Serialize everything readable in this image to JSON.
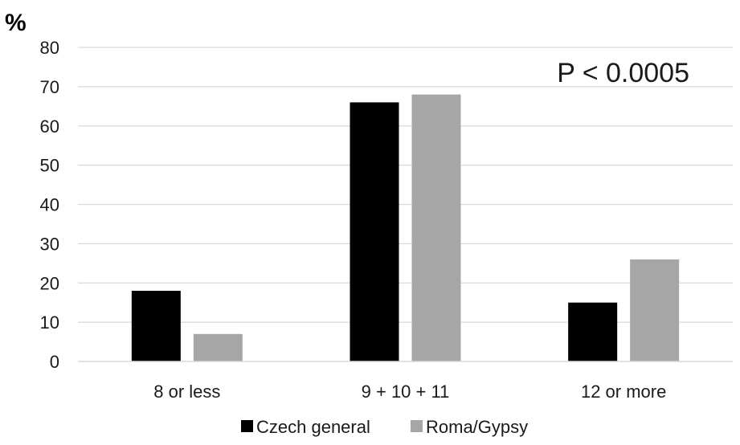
{
  "chart_data": {
    "type": "bar",
    "ylabel": "%",
    "annotation": "P < 0.0005",
    "categories": [
      "8 or less",
      "9 + 10 + 11",
      "12 or more"
    ],
    "series": [
      {
        "name": "Czech general",
        "values": [
          18,
          66,
          15
        ],
        "color": "#000000"
      },
      {
        "name": "Roma/Gypsy",
        "values": [
          7,
          68,
          26
        ],
        "color": "#a6a6a6"
      }
    ],
    "ylim": [
      0,
      80
    ],
    "yticks": [
      "0",
      "10",
      "20",
      "30",
      "40",
      "50",
      "60",
      "70",
      "80"
    ],
    "grid": true,
    "gridColor": "#d9d9d9",
    "legend": "bottom"
  }
}
